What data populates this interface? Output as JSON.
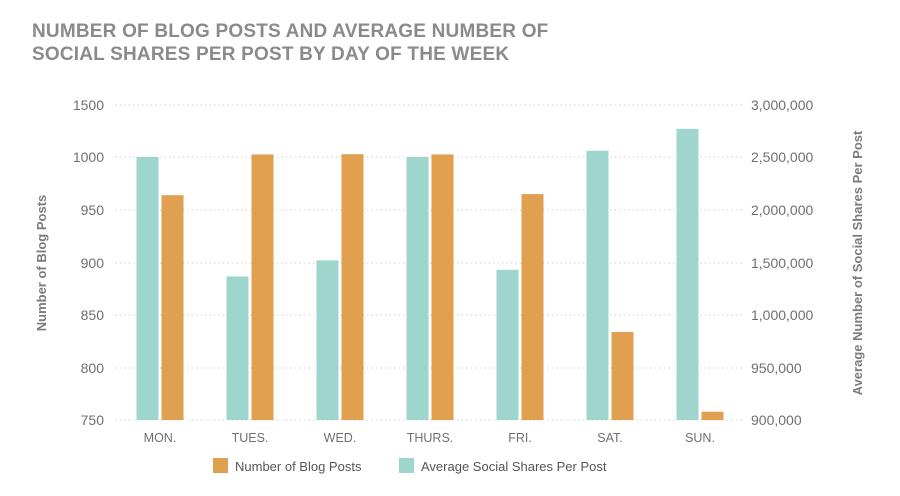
{
  "chart_data": {
    "type": "bar",
    "title_lines": [
      "NUMBER OF BLOG POSTS AND AVERAGE NUMBER OF",
      "SOCIAL SHARES PER POST BY DAY OF THE WEEK"
    ],
    "categories": [
      "MON.",
      "TUES.",
      "WED.",
      "THURS.",
      "FRI.",
      "SAT.",
      "SUN."
    ],
    "series": [
      {
        "name": "Average Social Shares Per Post",
        "axis": "right",
        "color": "#9ed6ce",
        "values": [
          2500000,
          1370000,
          1525000,
          2500000,
          1435000,
          2560000,
          2770000
        ]
      },
      {
        "name": "Number of Blog Posts",
        "axis": "left",
        "color": "#e0a050",
        "values": [
          964,
          1025,
          1027,
          1025,
          965,
          834,
          758
        ]
      }
    ],
    "legend_order": [
      "Number of Blog Posts",
      "Average Social Shares Per Post"
    ],
    "left_axis": {
      "label": "Number of Blog Posts",
      "min": 750,
      "max": 1500,
      "ticks": [
        {
          "value": 750,
          "label": "750"
        },
        {
          "value": 800,
          "label": "800"
        },
        {
          "value": 850,
          "label": "850"
        },
        {
          "value": 900,
          "label": "900"
        },
        {
          "value": 950,
          "label": "950"
        },
        {
          "value": 1000,
          "label": "1000"
        },
        {
          "value": 1500,
          "label": "1500"
        }
      ]
    },
    "right_axis": {
      "label": "Average Number of Social Shares Per Post",
      "min": 900000,
      "max": 3000000,
      "ticks": [
        {
          "value": 900000,
          "label": "900,000"
        },
        {
          "value": 950000,
          "label": "950,000"
        },
        {
          "value": 1000000,
          "label": "1,000,000"
        },
        {
          "value": 1500000,
          "label": "1,500,000"
        },
        {
          "value": 2000000,
          "label": "2,000,000"
        },
        {
          "value": 2500000,
          "label": "2,500,000"
        },
        {
          "value": 3000000,
          "label": "3,000,000"
        }
      ]
    },
    "grid": true,
    "legend_position": "bottom"
  }
}
